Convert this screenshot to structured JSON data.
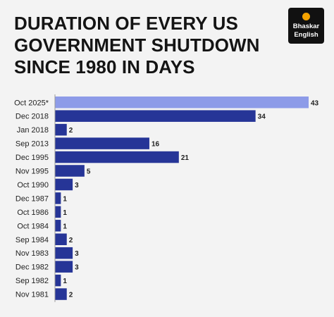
{
  "title_lines": [
    "DURATION OF EVERY US",
    "GOVERNMENT SHUTDOWN",
    "SINCE 1980 IN DAYS"
  ],
  "logo": {
    "line1": "Bhaskar",
    "line2": "English"
  },
  "colors": {
    "highlight": "#8d9be8",
    "bar": "#263597",
    "axis": "#999999",
    "text": "#222222"
  },
  "chart_data": {
    "type": "bar",
    "orientation": "horizontal",
    "categories": [
      "Oct 2025*",
      "Dec 2018",
      "Jan 2018",
      "Sep 2013",
      "Dec 1995",
      "Nov 1995",
      "Oct 1990",
      "Dec 1987",
      "Oct 1986",
      "Oct 1984",
      "Sep 1984",
      "Nov 1983",
      "Dec 1982",
      "Sep 1982",
      "Nov 1981"
    ],
    "values": [
      43,
      34,
      2,
      16,
      21,
      5,
      3,
      1,
      1,
      1,
      2,
      3,
      3,
      1,
      2
    ],
    "highlighted_category": "Oct 2025*",
    "xlim": [
      0,
      43
    ]
  }
}
